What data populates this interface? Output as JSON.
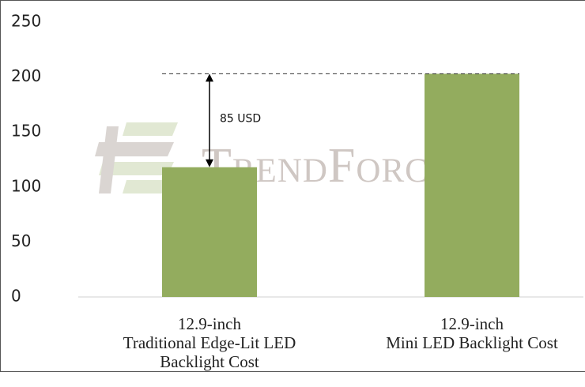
{
  "chart_data": {
    "type": "bar",
    "categories": [
      "12.9-inch\nTraditional Edge-Lit LED\nBacklight Cost",
      "12.9-inch\nMini LED Backlight Cost"
    ],
    "values": [
      118,
      203
    ],
    "color": "#93ac5e",
    "ylim": [
      0,
      250
    ],
    "yticks": [
      0,
      50,
      100,
      150,
      200,
      250
    ],
    "grid": false,
    "annotation": "85 USD",
    "watermark": "TrendForce"
  }
}
